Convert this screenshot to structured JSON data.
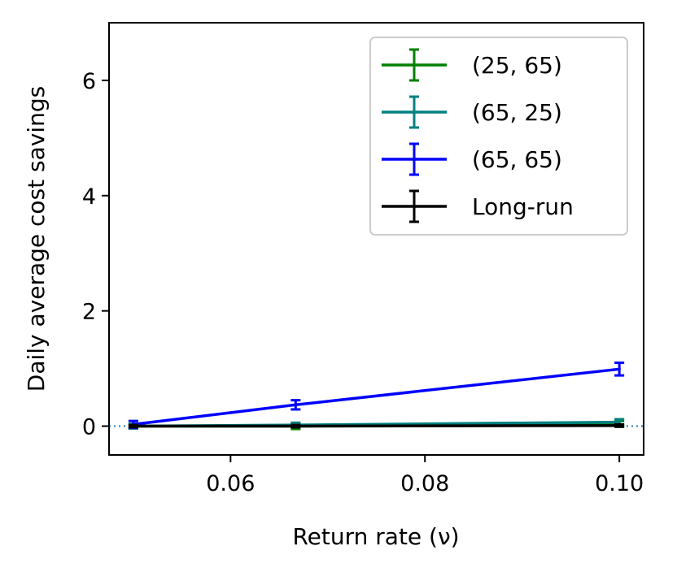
{
  "chart_data": {
    "type": "line",
    "xlabel": "Return rate (ν)",
    "ylabel": "Daily average cost savings",
    "xlim": [
      0.0475,
      0.1025
    ],
    "ylim": [
      -0.5,
      7.0
    ],
    "xticks": [
      0.06,
      0.08,
      0.1
    ],
    "xtick_labels": [
      "0.06",
      "0.08",
      "0.10"
    ],
    "yticks": [
      0,
      2,
      4,
      6
    ],
    "ytick_labels": [
      "0",
      "2",
      "4",
      "6"
    ],
    "x": [
      0.05,
      0.0667,
      0.1
    ],
    "reference_line": {
      "y": 0,
      "style": "dotted"
    },
    "legend_position": "upper right",
    "series": [
      {
        "name": "(25, 65)",
        "color": "#008000",
        "values": [
          0.0,
          0.0,
          0.04
        ],
        "errors": [
          0.04,
          0.05,
          0.05
        ]
      },
      {
        "name": "(65, 25)",
        "color": "#008080",
        "values": [
          0.0,
          0.02,
          0.07
        ],
        "errors": [
          0.04,
          0.04,
          0.05
        ]
      },
      {
        "name": "(65, 65)",
        "color": "#0000ff",
        "values": [
          0.03,
          0.37,
          0.99
        ],
        "errors": [
          0.06,
          0.08,
          0.11
        ]
      },
      {
        "name": "Long-run",
        "color": "#000000",
        "values": [
          0.0,
          0.0,
          0.01
        ],
        "errors": [
          0.02,
          0.02,
          0.02
        ]
      }
    ]
  }
}
